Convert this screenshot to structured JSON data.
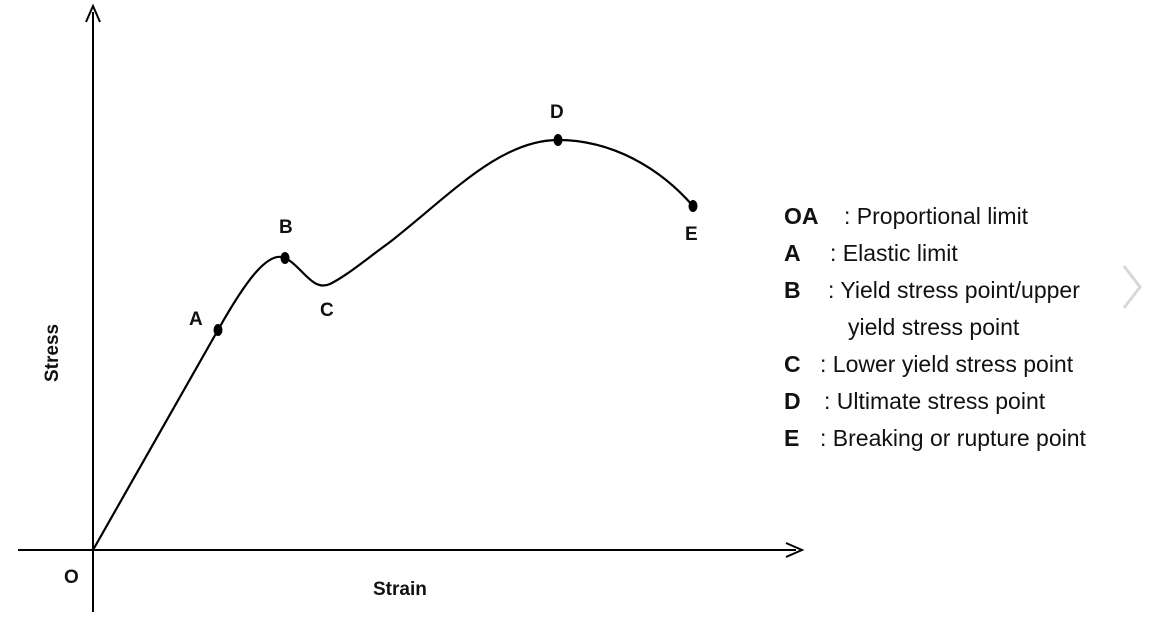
{
  "diagram": {
    "axes": {
      "y_label": "Stress",
      "x_label": "Strain",
      "origin_label": "O"
    },
    "points": [
      {
        "id": "A",
        "label": "A"
      },
      {
        "id": "B",
        "label": "B"
      },
      {
        "id": "C",
        "label": "C"
      },
      {
        "id": "D",
        "label": "D"
      },
      {
        "id": "E",
        "label": "E"
      }
    ],
    "legend": [
      {
        "key": "OA",
        "text": ": Proportional limit"
      },
      {
        "key": "A",
        "text": ": Elastic limit"
      },
      {
        "key": "B",
        "text": ": Yield stress point/upper",
        "continuation": "yield stress point"
      },
      {
        "key": "C",
        "text": ": Lower yield stress point"
      },
      {
        "key": "D",
        "text": ": Ultimate stress point"
      },
      {
        "key": "E",
        "text": ": Breaking or rupture point"
      }
    ],
    "colors": {
      "line": "#000000",
      "chevron": "#d8d8d8"
    },
    "icons": {
      "next": "chevron-right-icon"
    }
  }
}
